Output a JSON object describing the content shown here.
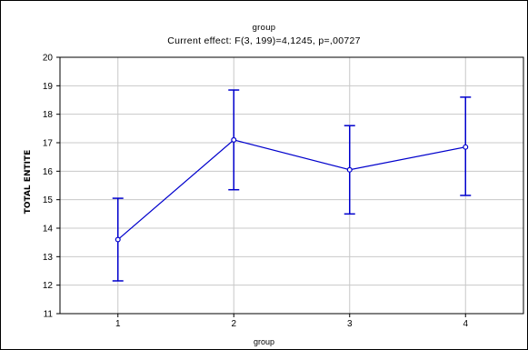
{
  "chart_data": {
    "type": "line",
    "title": "group",
    "subtitle": "Current effect: F(3, 199)=4,1245, p=,00727",
    "xlabel": "group",
    "ylabel": "TOTAL ENTITE",
    "categories": [
      "1",
      "2",
      "3",
      "4"
    ],
    "series": [
      {
        "values": [
          13.6,
          17.1,
          16.05,
          16.85
        ],
        "error_lower": [
          12.15,
          15.35,
          14.5,
          15.15
        ],
        "error_upper": [
          15.05,
          18.85,
          17.6,
          18.6
        ],
        "color": "#0000cc"
      }
    ],
    "ylim": [
      11,
      20
    ],
    "yticks": [
      "11",
      "12",
      "13",
      "14",
      "15",
      "16",
      "17",
      "18",
      "19",
      "20"
    ],
    "grid": true,
    "grid_color": "#c8c8c8",
    "frame_color": "#000000"
  }
}
